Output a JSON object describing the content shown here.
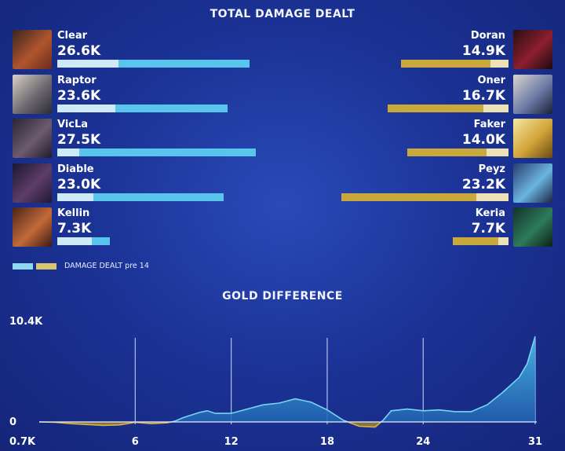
{
  "damage_title": "TOTAL DAMAGE DEALT",
  "gold_title": "GOLD DIFFERENCE",
  "legend_label": "DAMAGE DEALT pre 14",
  "colors": {
    "blue_total": "#59c4ec",
    "blue_pre14": "#cdeaf6",
    "gold_total": "#c9a93c",
    "gold_pre14": "#ece2b6",
    "line": "#76d5f5",
    "grid": "#cfd8ff"
  },
  "blue_team": [
    {
      "name": "Clear",
      "damage": "26.6K",
      "total": 26.6,
      "pre14": 8.5,
      "icon": "portrait-clear"
    },
    {
      "name": "Raptor",
      "damage": "23.6K",
      "total": 23.6,
      "pre14": 8.0,
      "icon": "portrait-raptor"
    },
    {
      "name": "VicLa",
      "damage": "27.5K",
      "total": 27.5,
      "pre14": 3.0,
      "icon": "portrait-vicla"
    },
    {
      "name": "Diable",
      "damage": "23.0K",
      "total": 23.0,
      "pre14": 5.0,
      "icon": "portrait-diable"
    },
    {
      "name": "Kellin",
      "damage": "7.3K",
      "total": 7.3,
      "pre14": 4.8,
      "icon": "portrait-kellin"
    }
  ],
  "red_team": [
    {
      "name": "Doran",
      "damage": "14.9K",
      "total": 14.9,
      "pre14": 2.5,
      "icon": "portrait-doran"
    },
    {
      "name": "Oner",
      "damage": "16.7K",
      "total": 16.7,
      "pre14": 3.5,
      "icon": "portrait-oner"
    },
    {
      "name": "Faker",
      "damage": "14.0K",
      "total": 14.0,
      "pre14": 3.0,
      "icon": "portrait-faker"
    },
    {
      "name": "Peyz",
      "damage": "23.2K",
      "total": 23.2,
      "pre14": 4.5,
      "icon": "portrait-peyz"
    },
    {
      "name": "Keria",
      "damage": "7.7K",
      "total": 7.7,
      "pre14": 1.4,
      "icon": "portrait-keria"
    }
  ],
  "chart_data": [
    {
      "type": "bar",
      "title": "TOTAL DAMAGE DEALT",
      "categories_blue": [
        "Clear",
        "Raptor",
        "VicLa",
        "Diable",
        "Kellin"
      ],
      "categories_red": [
        "Doran",
        "Oner",
        "Faker",
        "Peyz",
        "Keria"
      ],
      "series": [
        {
          "name": "total",
          "values_blue": [
            26.6,
            23.6,
            27.5,
            23.0,
            7.3
          ],
          "values_red": [
            14.9,
            16.7,
            14.0,
            23.2,
            7.7
          ]
        },
        {
          "name": "DAMAGE DEALT pre 14",
          "values_blue": [
            8.5,
            8.0,
            3.0,
            5.0,
            4.8
          ],
          "values_red": [
            2.5,
            3.5,
            3.0,
            4.5,
            1.4
          ]
        }
      ],
      "units": "K"
    },
    {
      "type": "area",
      "title": "GOLD DIFFERENCE",
      "y_top_label": "10.4K",
      "y_zero_label": "0",
      "y_bottom_label": "0.7K",
      "ylim": [
        -0.7,
        10.4
      ],
      "xlim": [
        0,
        31
      ],
      "xticks": [
        6,
        12,
        18,
        24,
        31
      ],
      "xticks_labels": [
        "6",
        "12",
        "18",
        "24",
        "31"
      ],
      "x": [
        0,
        1,
        2,
        3,
        4,
        5,
        5.5,
        6,
        7,
        8,
        8.5,
        9,
        10,
        10.5,
        11,
        12,
        13,
        14,
        15,
        16,
        17,
        18,
        19,
        20,
        21,
        21.5,
        22,
        23,
        24,
        25,
        26,
        27,
        28,
        29,
        30,
        30.5,
        31
      ],
      "y": [
        0,
        -0.05,
        -0.2,
        -0.3,
        -0.4,
        -0.35,
        -0.2,
        -0.05,
        -0.2,
        -0.1,
        0.1,
        0.5,
        1.1,
        1.3,
        1.0,
        1.0,
        1.5,
        2.0,
        2.2,
        2.7,
        2.3,
        1.4,
        0.2,
        -0.5,
        -0.6,
        0.2,
        1.3,
        1.5,
        1.3,
        1.4,
        1.2,
        1.2,
        2.0,
        3.5,
        5.2,
        6.8,
        10.0
      ]
    }
  ]
}
